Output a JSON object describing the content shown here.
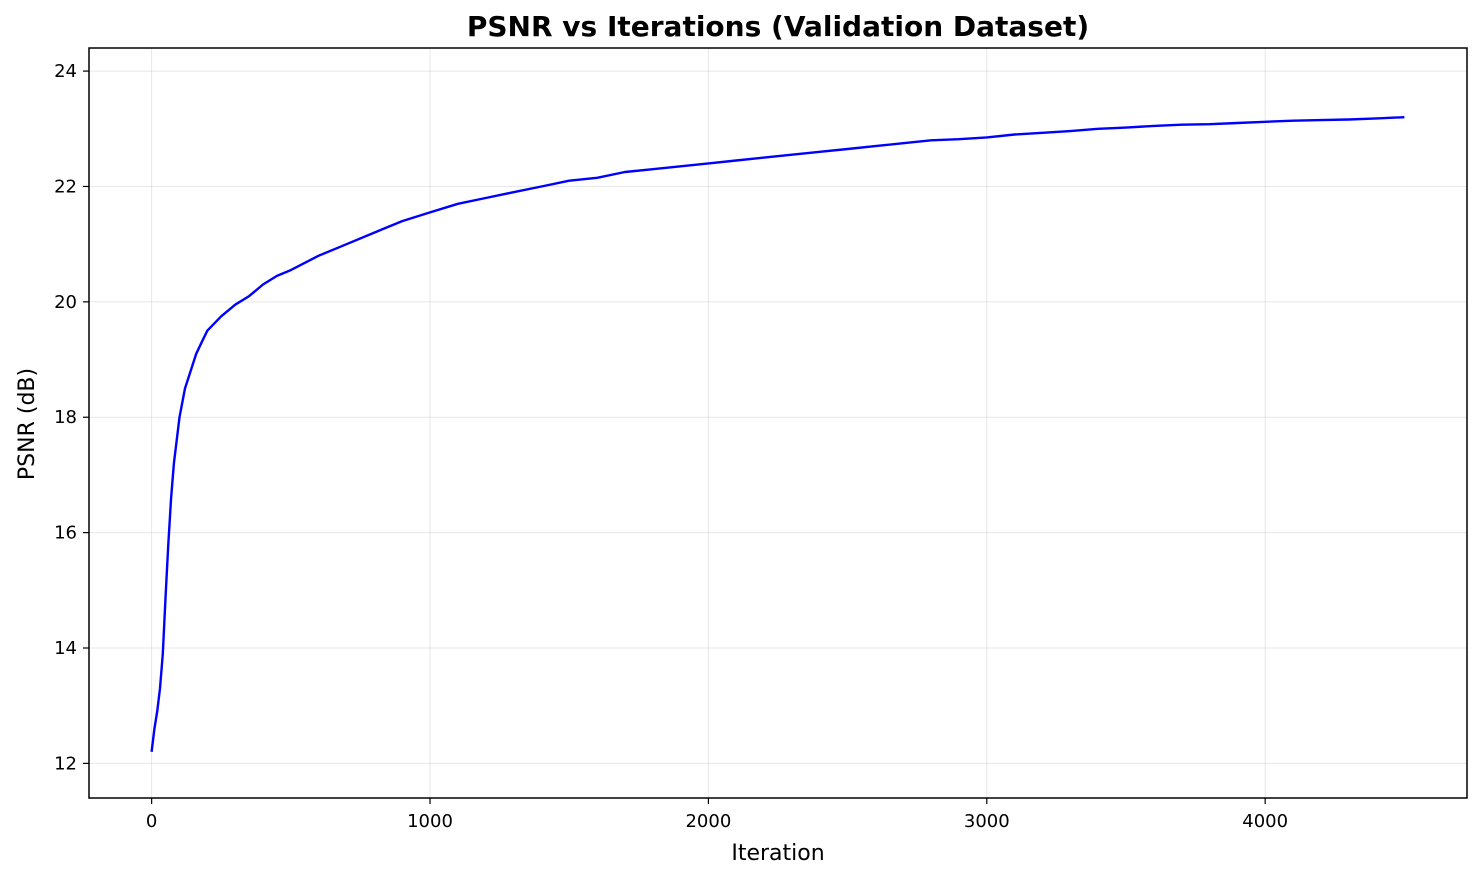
{
  "chart_data": {
    "type": "line",
    "title": "PSNR vs Iterations (Validation Dataset)",
    "xlabel": "Iteration",
    "ylabel": "PSNR (dB)",
    "xlim": [
      -225,
      4725
    ],
    "ylim": [
      11.4,
      24.4
    ],
    "x_ticks": [
      0,
      1000,
      2000,
      3000,
      4000
    ],
    "y_ticks": [
      12,
      14,
      16,
      18,
      20,
      22,
      24
    ],
    "grid": true,
    "legend": "none",
    "line_color": "#0000ff",
    "series": [
      {
        "x": [
          0,
          10,
          20,
          30,
          40,
          50,
          60,
          70,
          80,
          90,
          100,
          120,
          140,
          160,
          180,
          200,
          250,
          300,
          350,
          400,
          450,
          500,
          600,
          700,
          800,
          900,
          1000,
          1100,
          1200,
          1300,
          1400,
          1500,
          1600,
          1700,
          1800,
          1900,
          2000,
          2100,
          2200,
          2300,
          2400,
          2500,
          2600,
          2700,
          2800,
          2900,
          3000,
          3100,
          3200,
          3300,
          3400,
          3500,
          3600,
          3700,
          3800,
          3900,
          4000,
          4100,
          4200,
          4300,
          4400,
          4500
        ],
        "y": [
          12.2,
          12.6,
          12.9,
          13.3,
          13.9,
          14.9,
          15.8,
          16.6,
          17.2,
          17.6,
          18.0,
          18.5,
          18.8,
          19.1,
          19.3,
          19.5,
          19.75,
          19.95,
          20.1,
          20.3,
          20.45,
          20.55,
          20.8,
          21.0,
          21.2,
          21.4,
          21.55,
          21.7,
          21.8,
          21.9,
          22.0,
          22.1,
          22.15,
          22.25,
          22.3,
          22.35,
          22.4,
          22.45,
          22.5,
          22.55,
          22.6,
          22.65,
          22.7,
          22.75,
          22.8,
          22.82,
          22.85,
          22.9,
          22.93,
          22.96,
          23.0,
          23.02,
          23.05,
          23.07,
          23.08,
          23.1,
          23.12,
          23.14,
          23.15,
          23.16,
          23.18,
          23.2
        ]
      }
    ]
  }
}
